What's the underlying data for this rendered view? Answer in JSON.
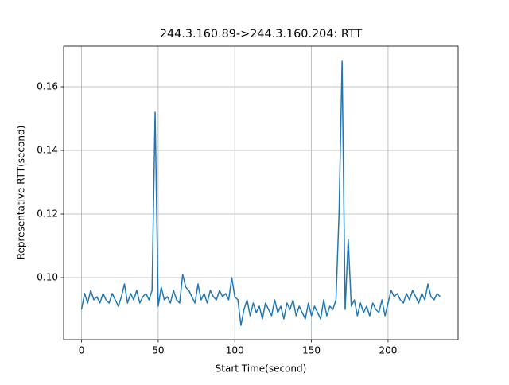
{
  "chart_data": {
    "type": "line",
    "title": "244.3.160.89->244.3.160.204: RTT",
    "x_label": "Start Time(second)",
    "y_label": "Representative RTT(second)",
    "x": [
      0,
      2,
      4,
      6,
      8,
      10,
      12,
      14,
      16,
      18,
      20,
      22,
      24,
      26,
      28,
      30,
      32,
      34,
      36,
      38,
      40,
      42,
      44,
      46,
      48,
      50,
      52,
      54,
      56,
      58,
      60,
      62,
      64,
      66,
      68,
      70,
      72,
      74,
      76,
      78,
      80,
      82,
      84,
      86,
      88,
      90,
      92,
      94,
      96,
      98,
      100,
      102,
      104,
      106,
      108,
      110,
      112,
      114,
      116,
      118,
      120,
      122,
      124,
      126,
      128,
      130,
      132,
      134,
      136,
      138,
      140,
      142,
      144,
      146,
      148,
      150,
      152,
      154,
      156,
      158,
      160,
      162,
      164,
      166,
      168,
      170,
      172,
      174,
      176,
      178,
      180,
      182,
      184,
      186,
      188,
      190,
      192,
      194,
      196,
      198,
      200,
      202,
      204,
      206,
      208,
      210,
      212,
      214,
      216,
      218,
      220,
      222,
      224,
      226,
      228,
      230,
      232,
      234
    ],
    "series": [
      {
        "name": "RTT",
        "color": "#1f77b4",
        "values": [
          0.09,
          0.095,
          0.092,
          0.096,
          0.093,
          0.094,
          0.092,
          0.095,
          0.093,
          0.092,
          0.095,
          0.093,
          0.091,
          0.094,
          0.098,
          0.092,
          0.095,
          0.093,
          0.096,
          0.092,
          0.094,
          0.095,
          0.093,
          0.096,
          0.152,
          0.091,
          0.097,
          0.093,
          0.094,
          0.092,
          0.096,
          0.093,
          0.092,
          0.101,
          0.097,
          0.096,
          0.094,
          0.092,
          0.098,
          0.093,
          0.095,
          0.092,
          0.096,
          0.094,
          0.093,
          0.096,
          0.094,
          0.095,
          0.093,
          0.1,
          0.094,
          0.093,
          0.085,
          0.09,
          0.093,
          0.088,
          0.092,
          0.089,
          0.091,
          0.087,
          0.092,
          0.09,
          0.088,
          0.093,
          0.089,
          0.091,
          0.087,
          0.092,
          0.09,
          0.093,
          0.088,
          0.091,
          0.089,
          0.087,
          0.092,
          0.088,
          0.091,
          0.089,
          0.087,
          0.093,
          0.088,
          0.091,
          0.09,
          0.093,
          0.12,
          0.168,
          0.09,
          0.112,
          0.091,
          0.093,
          0.088,
          0.092,
          0.089,
          0.091,
          0.088,
          0.092,
          0.09,
          0.089,
          0.093,
          0.088,
          0.092,
          0.096,
          0.094,
          0.095,
          0.093,
          0.092,
          0.095,
          0.093,
          0.096,
          0.094,
          0.092,
          0.095,
          0.093,
          0.098,
          0.094,
          0.093,
          0.095,
          0.094
        ]
      }
    ],
    "xlim": [
      -11.7,
      245.7
    ],
    "ylim": [
      0.0805,
      0.17275
    ],
    "xticks": [
      0,
      50,
      100,
      150,
      200
    ],
    "yticks": [
      {
        "value": 0.1,
        "label": "0.10"
      },
      0.12,
      0.14,
      0.16
    ],
    "grid": true
  }
}
